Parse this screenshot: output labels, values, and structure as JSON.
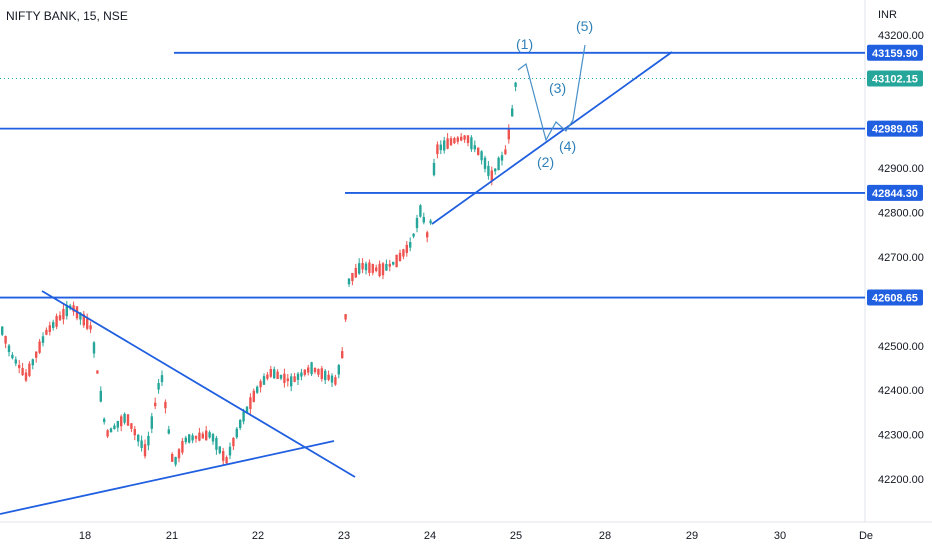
{
  "header": {
    "symbol": "NIFTY BANK, 15, NSE"
  },
  "chart_data": {
    "type": "candlestick",
    "currency": "INR",
    "ylim": [
      42130,
      43295
    ],
    "x_tick_labels": [
      "18",
      "21",
      "22",
      "23",
      "24",
      "25",
      "28",
      "29",
      "30",
      "De"
    ],
    "y_tick_labels": [
      "43200.00",
      "42900.00",
      "42800.00",
      "42700.00",
      "42500.00",
      "42400.00",
      "42300.00",
      "42200.00"
    ],
    "y_tick_values": [
      43200,
      42900,
      42800,
      42700,
      42500,
      42400,
      42300,
      42200
    ],
    "horizontal_levels": [
      {
        "label": "43159.90",
        "value": 43159.9
      },
      {
        "label": "42989.05",
        "value": 42989.05
      },
      {
        "label": "42844.30",
        "value": 42844.3
      },
      {
        "label": "42608.65",
        "value": 42608.65
      }
    ],
    "last_price": {
      "label": "43102.15",
      "value": 43102.15
    },
    "wave_labels": [
      "(1)",
      "(2)",
      "(3)",
      "(4)",
      "(5)"
    ],
    "colors": {
      "up": "#26a69a",
      "down": "#ef5350",
      "line": "#1f5fe0",
      "price_tag": "#26a69a",
      "wave": "#2f80b8"
    }
  }
}
